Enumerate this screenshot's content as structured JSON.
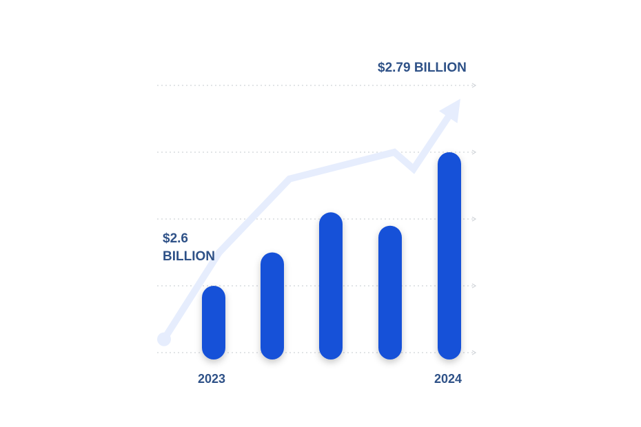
{
  "chart_data": {
    "type": "bar",
    "categories": [
      "2023",
      "",
      "",
      "",
      "2024"
    ],
    "values": [
      1.0,
      1.5,
      2.1,
      1.9,
      3.0
    ],
    "ylim": [
      0,
      4
    ],
    "grid": true,
    "annotations": {
      "start_line1": "$2.6",
      "start_line2": "BILLION",
      "end": "$2.79 BILLION"
    },
    "trend_arrow": {
      "values": [
        0.2,
        1.5,
        2.6,
        3.0,
        2.75,
        3.8
      ]
    },
    "colors": {
      "bar": "#1751d8",
      "arrow": "#e6edfd",
      "grid": "#cfd3d8",
      "text": "#2e5187"
    }
  }
}
